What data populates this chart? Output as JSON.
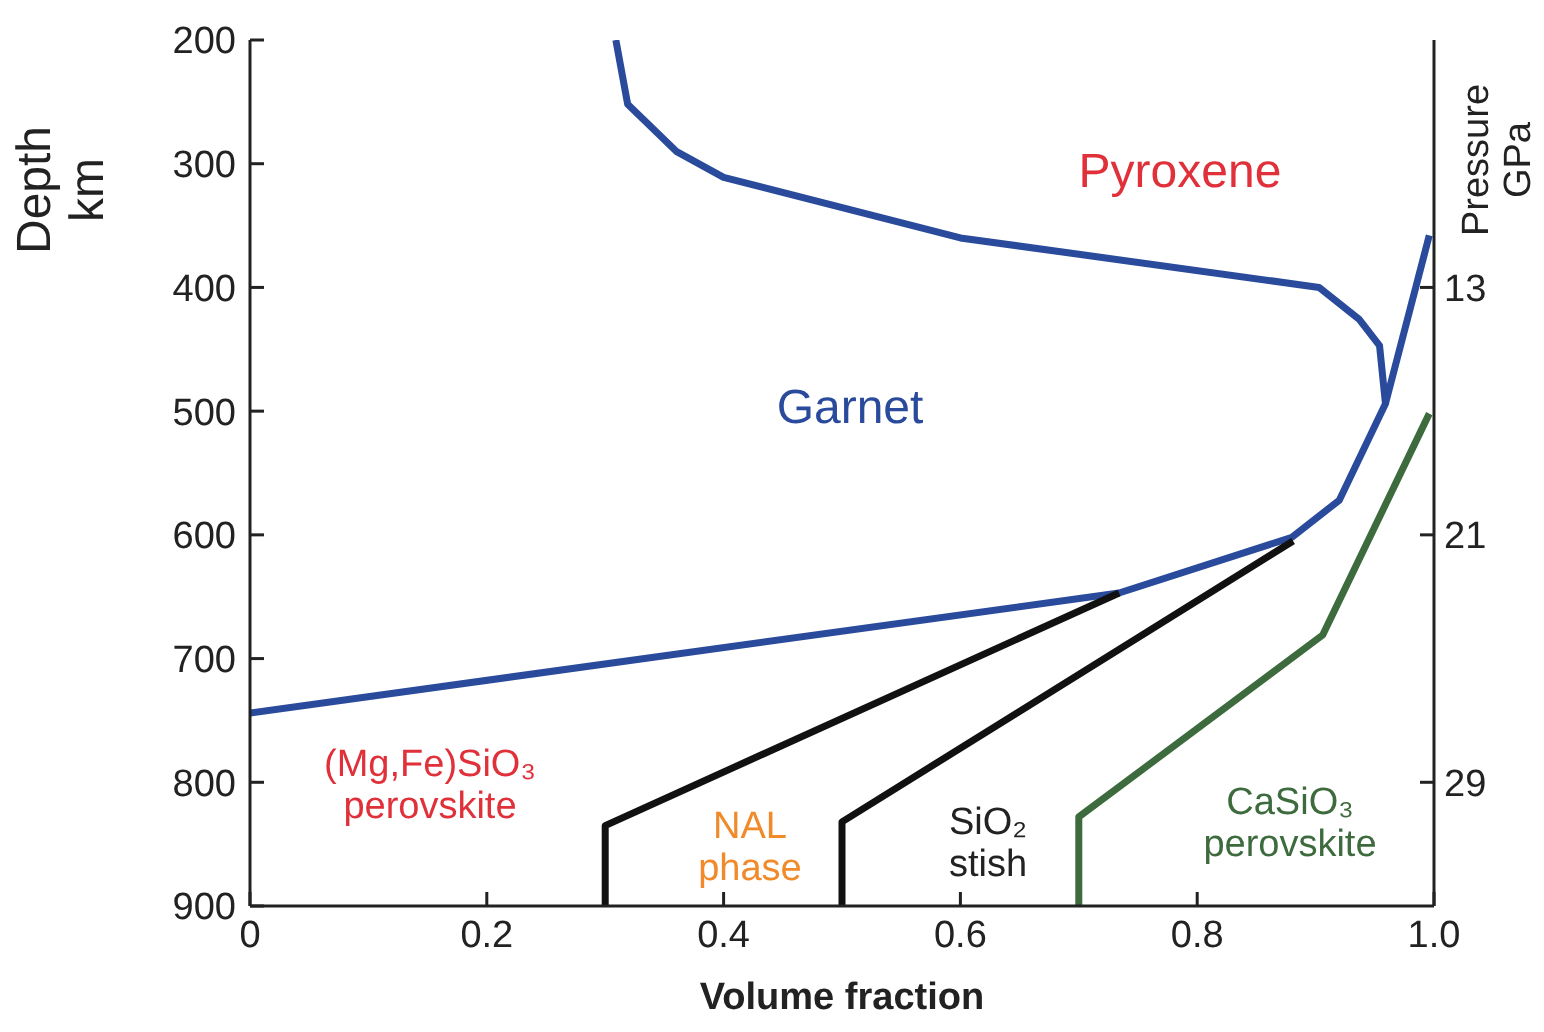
{
  "chart_data": {
    "type": "line",
    "xlabel": "Volume fraction",
    "ylabel": "Depth\nkm",
    "y2label": "Pressure\nGPa",
    "xlim": [
      0,
      1.0
    ],
    "xticks": [
      0,
      0.2,
      0.4,
      0.6,
      0.8,
      {
        "value": 1.0,
        "label": "1.0"
      }
    ],
    "ylim": [
      900,
      200
    ],
    "yticks": [
      200,
      300,
      400,
      500,
      600,
      700,
      800,
      900
    ],
    "y2lim": [
      33,
      5
    ],
    "y2ticks": [
      13,
      21,
      29
    ],
    "grid": false,
    "legend": false,
    "marker": "none",
    "line_style": "solid",
    "series": [
      {
        "color": "#2a4a9c",
        "x": [
          0.309,
          0.319,
          0.36,
          0.4,
          0.6,
          0.903,
          0.937,
          0.954,
          0.959,
          0.92,
          0.88,
          0.734,
          0
        ],
        "values": [
          200,
          252,
          290,
          311,
          360,
          400,
          426,
          447,
          494,
          572,
          602,
          647,
          744
        ]
      },
      {
        "color": "#2a4a9c",
        "x": [
          0.959,
          0.996
        ],
        "values": [
          494,
          358
        ]
      },
      {
        "color": "#111111",
        "x": [
          0.3,
          0.3,
          0.734
        ],
        "values": [
          900,
          835,
          647
        ]
      },
      {
        "color": "#111111",
        "x": [
          0.5,
          0.5,
          0.881
        ],
        "values": [
          900,
          832,
          605
        ]
      },
      {
        "color": "#3d6b3d",
        "x": [
          0.7,
          0.7,
          0.906,
          0.996
        ],
        "values": [
          900,
          828,
          681,
          502
        ]
      }
    ],
    "annotations": [
      "Pyroxene",
      "Garnet",
      "(Mg,Fe)SiO₃\nperovskite",
      "NAL\nphase",
      "SiO₂\nstish",
      "CaSiO₃\nperovskite"
    ]
  }
}
